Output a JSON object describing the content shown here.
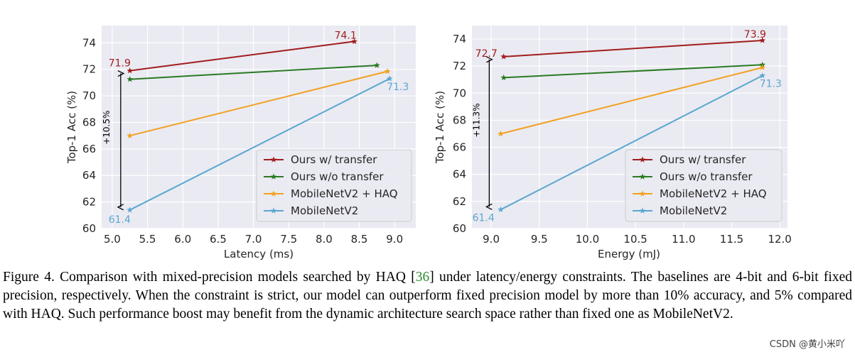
{
  "chart_data": [
    {
      "type": "line",
      "xlabel": "Latency (ms)",
      "ylabel": "Top-1 Acc (%)",
      "xlim": [
        4.85,
        9.3
      ],
      "ylim": [
        60,
        75.3
      ],
      "xticks": [
        5.0,
        5.5,
        6.0,
        6.5,
        7.0,
        7.5,
        8.0,
        8.5,
        9.0
      ],
      "xtick_labels": [
        "5.0",
        "5.5",
        "6.0",
        "6.5",
        "7.0",
        "7.5",
        "8.0",
        "8.5",
        "9.0"
      ],
      "yticks": [
        60,
        62,
        64,
        66,
        68,
        70,
        72,
        74
      ],
      "ytick_labels": [
        "60",
        "62",
        "64",
        "66",
        "68",
        "70",
        "72",
        "74"
      ],
      "grid": true,
      "legend_position": "lower-right",
      "series": [
        {
          "name": "Ours w/ transfer",
          "color": "#a11d1d",
          "x": [
            5.25,
            8.43
          ],
          "y": [
            71.9,
            74.1
          ]
        },
        {
          "name": "Ours w/o transfer",
          "color": "#2a7a22",
          "x": [
            5.25,
            8.75
          ],
          "y": [
            71.25,
            72.3
          ]
        },
        {
          "name": "MobileNetV2 + HAQ",
          "color": "#f2a11f",
          "x": [
            5.25,
            8.9
          ],
          "y": [
            67.0,
            71.85
          ]
        },
        {
          "name": "MobileNetV2",
          "color": "#5aa7d0",
          "x": [
            5.25,
            8.93
          ],
          "y": [
            61.4,
            71.3
          ]
        }
      ],
      "point_labels": [
        {
          "text": "74.1",
          "x": 8.43,
          "y": 74.1,
          "color": "#a11d1d"
        },
        {
          "text": "71.9",
          "x": 5.25,
          "y": 71.9,
          "color": "#a11d1d"
        },
        {
          "text": "71.3",
          "x": 8.93,
          "y": 71.3,
          "color": "#5aa7d0"
        },
        {
          "text": "61.4",
          "x": 5.25,
          "y": 61.4,
          "color": "#5aa7d0"
        }
      ],
      "annotation": {
        "text": "+10.5%",
        "x": 5.12,
        "y_from": 61.4,
        "y_to": 71.9
      }
    },
    {
      "type": "line",
      "xlabel": "Energy (mJ)",
      "ylabel": "Top-1 Acc (%)",
      "xlim": [
        8.8,
        12.08
      ],
      "ylim": [
        60,
        75.0
      ],
      "xticks": [
        9.0,
        9.5,
        10.0,
        10.5,
        11.0,
        11.5,
        12.0
      ],
      "xtick_labels": [
        "9.0",
        "9.5",
        "10.0",
        "10.5",
        "11.0",
        "11.5",
        "12.0"
      ],
      "yticks": [
        60,
        62,
        64,
        66,
        68,
        70,
        72,
        74
      ],
      "ytick_labels": [
        "60",
        "62",
        "64",
        "66",
        "68",
        "70",
        "72",
        "74"
      ],
      "grid": true,
      "legend_position": "lower-right",
      "series": [
        {
          "name": "Ours w/ transfer",
          "color": "#a11d1d",
          "x": [
            9.13,
            11.82
          ],
          "y": [
            72.7,
            73.9
          ]
        },
        {
          "name": "Ours w/o transfer",
          "color": "#2a7a22",
          "x": [
            9.13,
            11.82
          ],
          "y": [
            71.15,
            72.1
          ]
        },
        {
          "name": "MobileNetV2 + HAQ",
          "color": "#f2a11f",
          "x": [
            9.1,
            11.82
          ],
          "y": [
            67.0,
            71.9
          ]
        },
        {
          "name": "MobileNetV2",
          "color": "#5aa7d0",
          "x": [
            9.1,
            11.82
          ],
          "y": [
            61.4,
            71.3
          ]
        }
      ],
      "point_labels": [
        {
          "text": "73.9",
          "x": 11.82,
          "y": 73.9,
          "color": "#a11d1d"
        },
        {
          "text": "72.7",
          "x": 9.13,
          "y": 72.7,
          "color": "#a11d1d"
        },
        {
          "text": "71.3",
          "x": 11.82,
          "y": 71.3,
          "color": "#5aa7d0"
        },
        {
          "text": "61.4",
          "x": 9.1,
          "y": 61.4,
          "color": "#5aa7d0"
        }
      ],
      "annotation": {
        "text": "+11.3%",
        "x": 8.98,
        "y_from": 61.4,
        "y_to": 72.7
      }
    }
  ],
  "caption": {
    "part1": "Figure 4. Comparison with mixed-precision models searched by HAQ [",
    "ref": "36",
    "part2": "] under latency/energy constraints. The baselines are 4-bit and 6-bit fixed precision, respectively. When the constraint is strict, our model can outperform fixed precision model by more than 10% accuracy, and 5% compared with HAQ. Such performance boost may benefit from the dynamic architecture search space rather than fixed one as MobileNetV2."
  },
  "watermark": "CSDN @黄小米吖"
}
